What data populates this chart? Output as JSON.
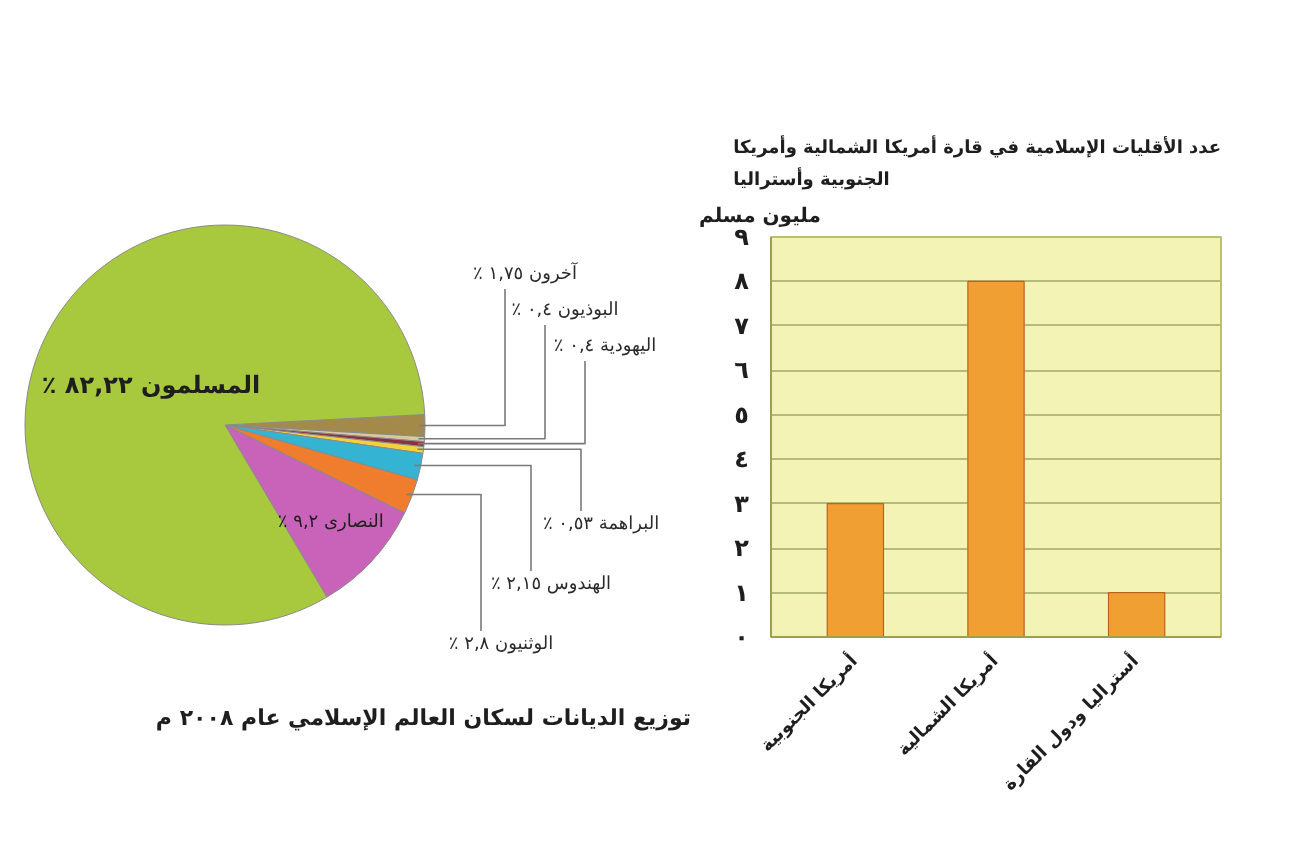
{
  "chart_data": [
    {
      "type": "pie",
      "title": "توزيع الديانات لسكان العالم الإسلامي عام ٢٠٠٨ م",
      "categories": [
        "آخرون",
        "البوذيون",
        "اليهودية",
        "البراهمة",
        "الهندوس",
        "الوثنيون",
        "النصارى",
        "المسلمون"
      ],
      "values": [
        1.75,
        0.4,
        0.4,
        0.53,
        2.15,
        2.8,
        9.2,
        82.22
      ],
      "colors": [
        "#a48a4a",
        "#d9c99a",
        "#8c3048",
        "#f2d23c",
        "#34b3d2",
        "#f07c2e",
        "#c962b9",
        "#a8c93e"
      ],
      "value_labels": [
        "١,٧٥ ٪",
        "٠,٤ ٪",
        "٠,٤ ٪",
        "٠,٥٣ ٪",
        "٢,١٥ ٪",
        "٢,٨ ٪",
        "٩,٢ ٪",
        "٨٢,٢٢ ٪"
      ]
    },
    {
      "type": "bar",
      "title": "عدد الأقليات الإسلامية في قارة أمريكا الشمالية وأمريكا الجنوبية وأستراليا",
      "ylabel": "مليون مسلم",
      "categories": [
        "أمريكا الجنوبية",
        "أمريكا الشمالية",
        "أستراليا ودول القارة"
      ],
      "values": [
        3,
        8,
        1
      ],
      "color": "#f0a032",
      "ylim": [
        0,
        9
      ],
      "yticks": [
        {
          "value": 0,
          "label": "٠"
        },
        {
          "value": 1,
          "label": "١"
        },
        {
          "value": 2,
          "label": "٢"
        },
        {
          "value": 3,
          "label": "٣"
        },
        {
          "value": 4,
          "label": "٤"
        },
        {
          "value": 5,
          "label": "٥"
        },
        {
          "value": 6,
          "label": "٦"
        },
        {
          "value": 7,
          "label": "٧"
        },
        {
          "value": 8,
          "label": "٨"
        },
        {
          "value": 9,
          "label": "٩"
        }
      ],
      "grid": "y"
    }
  ]
}
